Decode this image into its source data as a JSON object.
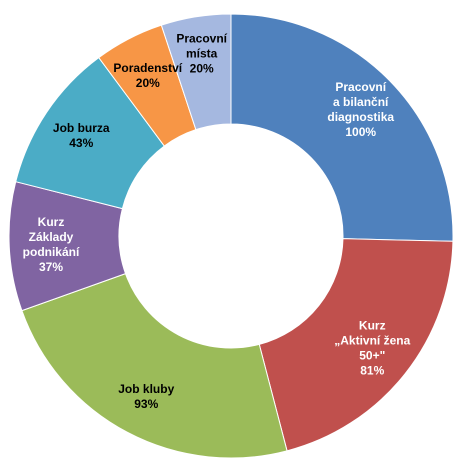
{
  "chart_data": {
    "type": "pie",
    "variant": "donut",
    "title": "",
    "legend": "none",
    "slices": [
      {
        "label_lines": [
          "Pracovní",
          "a bilanční",
          "diagnostika"
        ],
        "value_label": "100%",
        "value": 100,
        "color": "#4F81BD"
      },
      {
        "label_lines": [
          "Kurz",
          "„Aktivní žena",
          "50+\""
        ],
        "value_label": "81%",
        "value": 81,
        "color": "#C0504D"
      },
      {
        "label_lines": [
          "Job kluby"
        ],
        "value_label": "93%",
        "value": 93,
        "color": "#9BBB59"
      },
      {
        "label_lines": [
          "Kurz",
          "Základy",
          "podnikání"
        ],
        "value_label": "37%",
        "value": 37,
        "color": "#8064A2"
      },
      {
        "label_lines": [
          "Job burza"
        ],
        "value_label": "43%",
        "value": 43,
        "color": "#4BACC6"
      },
      {
        "label_lines": [
          "Poradenství"
        ],
        "value_label": "20%",
        "value": 20,
        "color": "#F79646"
      },
      {
        "label_lines": [
          "Pracovní",
          "místa"
        ],
        "value_label": "20%",
        "value": 20,
        "color": "#A5B8E0"
      }
    ]
  }
}
